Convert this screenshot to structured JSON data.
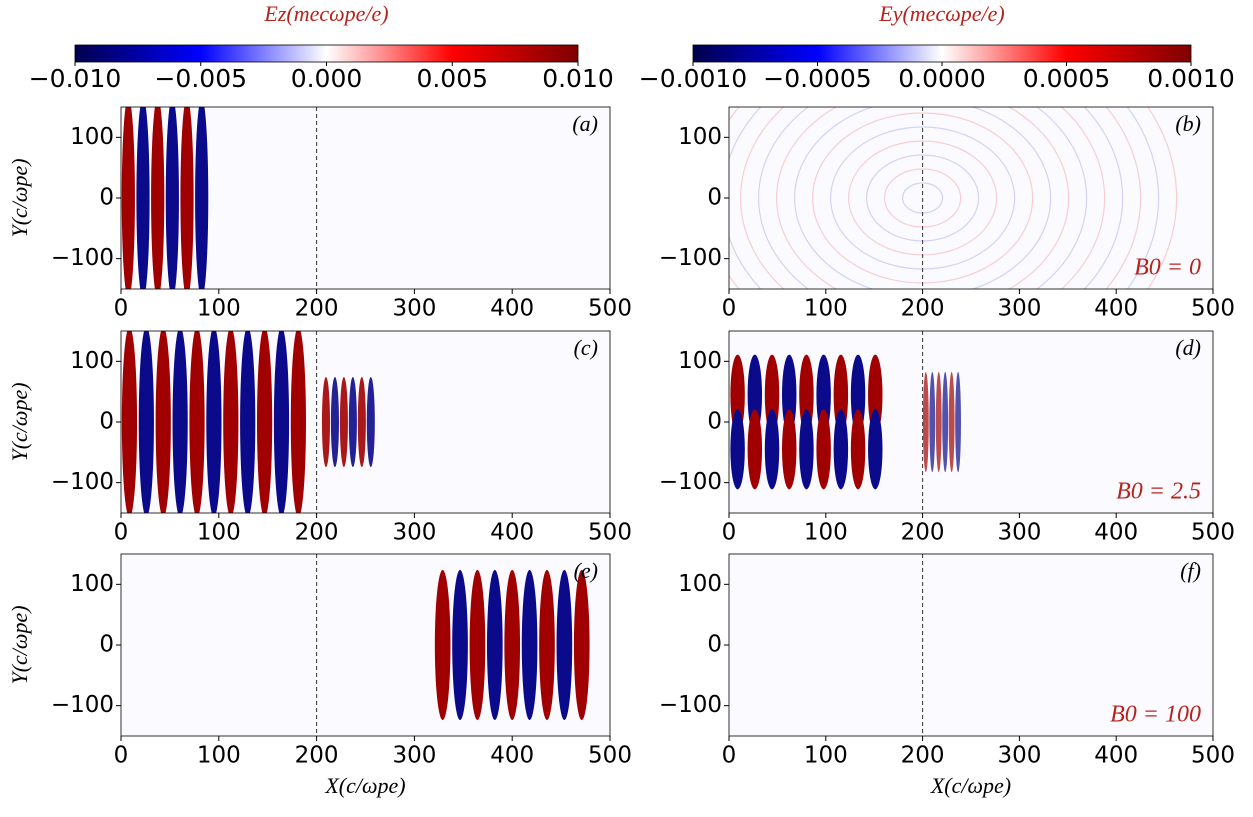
{
  "colorbars": [
    {
      "label": "Ez(mecωpe/e)",
      "cmap": "seismic",
      "lim": [
        -0.01,
        0.01
      ],
      "ticks": [
        {
          "value": -0.01,
          "label": "−0.010"
        },
        {
          "value": -0.005,
          "label": "−0.005"
        },
        {
          "value": 0,
          "label": "0.000"
        },
        {
          "value": 0.005,
          "label": "0.005"
        },
        {
          "value": 0.01,
          "label": "0.010"
        }
      ]
    },
    {
      "label": "Ey(mecωpe/e)",
      "cmap": "seismic",
      "lim": [
        -0.001,
        0.001
      ],
      "ticks": [
        {
          "value": -0.001,
          "label": "−0.0010"
        },
        {
          "value": -0.0005,
          "label": "−0.0005"
        },
        {
          "value": 0,
          "label": "0.0000"
        },
        {
          "value": 0.0005,
          "label": "0.0005"
        },
        {
          "value": 0.001,
          "label": "0.0010"
        }
      ]
    }
  ],
  "chart_data": [
    {
      "type": "heatmap",
      "panel_label": "(a)",
      "ylabel": "Y(c/ωpe)",
      "xlim": [
        0,
        500
      ],
      "ylim": [
        -150,
        150
      ],
      "xticks": [
        0,
        100,
        200,
        300,
        400,
        500
      ],
      "yticks": [
        100,
        0,
        {
          "value": -100,
          "label": "−100"
        }
      ],
      "vline": 200
    },
    {
      "type": "heatmap",
      "panel_label": "(b)",
      "annotation": "B0 = 0",
      "xlim": [
        0,
        500
      ],
      "ylim": [
        -150,
        150
      ],
      "xticks": [
        0,
        100,
        200,
        300,
        400,
        500
      ],
      "yticks": [
        100,
        0,
        {
          "value": -100,
          "label": "−100"
        }
      ],
      "vline": 200
    },
    {
      "type": "heatmap",
      "panel_label": "(c)",
      "ylabel": "Y(c/ωpe)",
      "xlim": [
        0,
        500
      ],
      "ylim": [
        -150,
        150
      ],
      "xticks": [
        0,
        100,
        200,
        300,
        400,
        500
      ],
      "yticks": [
        100,
        0,
        {
          "value": -100,
          "label": "−100"
        }
      ],
      "vline": 200
    },
    {
      "type": "heatmap",
      "panel_label": "(d)",
      "annotation": "B0 = 2.5",
      "xlim": [
        0,
        500
      ],
      "ylim": [
        -150,
        150
      ],
      "xticks": [
        0,
        100,
        200,
        300,
        400,
        500
      ],
      "yticks": [
        100,
        0,
        {
          "value": -100,
          "label": "−100"
        }
      ],
      "vline": 200
    },
    {
      "type": "heatmap",
      "panel_label": "(e)",
      "ylabel": "Y(c/ωpe)",
      "xlabel": "X(c/ωpe)",
      "xlim": [
        0,
        500
      ],
      "ylim": [
        -150,
        150
      ],
      "xticks": [
        0,
        100,
        200,
        300,
        400,
        500
      ],
      "yticks": [
        100,
        0,
        {
          "value": -100,
          "label": "−100"
        }
      ],
      "vline": 200
    },
    {
      "type": "heatmap",
      "panel_label": "(f)",
      "annotation": "B0 = 100",
      "xlabel": "X(c/ωpe)",
      "xlim": [
        0,
        500
      ],
      "ylim": [
        -150,
        150
      ],
      "xticks": [
        0,
        100,
        200,
        300,
        400,
        500
      ],
      "yticks": [
        100,
        0,
        {
          "value": -100,
          "label": "−100"
        }
      ],
      "vline": 200
    }
  ]
}
